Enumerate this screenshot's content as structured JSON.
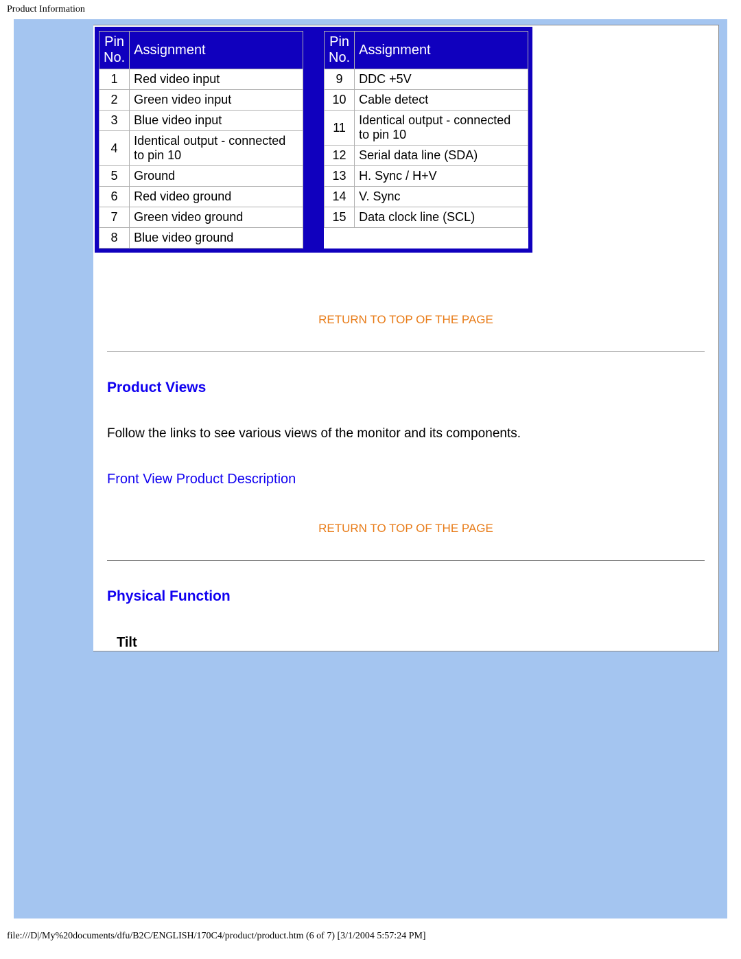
{
  "header": {
    "title": "Product Information"
  },
  "pin_table": {
    "headers": {
      "pin_no": "Pin No.",
      "assignment": "Assignment"
    },
    "left_rows": [
      {
        "no": "1",
        "assignment": "Red video input"
      },
      {
        "no": "2",
        "assignment": "Green video input"
      },
      {
        "no": "3",
        "assignment": "Blue video input"
      },
      {
        "no": "4",
        "assignment": "Identical output - connected to pin 10"
      },
      {
        "no": "5",
        "assignment": "Ground"
      },
      {
        "no": "6",
        "assignment": "Red video ground"
      },
      {
        "no": "7",
        "assignment": "Green video ground"
      },
      {
        "no": "8",
        "assignment": "Blue video ground"
      }
    ],
    "right_rows": [
      {
        "no": "9",
        "assignment": "DDC +5V"
      },
      {
        "no": "10",
        "assignment": "Cable detect"
      },
      {
        "no": "11",
        "assignment": "Identical output - connected to pin 10"
      },
      {
        "no": "12",
        "assignment": "Serial data line (SDA)"
      },
      {
        "no": "13",
        "assignment": "H. Sync / H+V"
      },
      {
        "no": "14",
        "assignment": "V. Sync"
      },
      {
        "no": "15",
        "assignment": "Data clock line (SCL)"
      }
    ]
  },
  "links": {
    "return_top": "RETURN TO TOP OF THE PAGE",
    "front_view": "Front View Product Description"
  },
  "sections": {
    "product_views": {
      "heading": "Product Views",
      "text": "Follow the links to see various views of the monitor and its components."
    },
    "physical_function": {
      "heading": "Physical Function",
      "sub": "Tilt"
    }
  },
  "footer": {
    "text": "file:///D|/My%20documents/dfu/B2C/ENGLISH/170C4/product/product.htm (6 of 7) [3/1/2004 5:57:24 PM]"
  },
  "colors": {
    "frame_blue": "#a4c5f0",
    "table_blue": "#1000be",
    "link_blue": "#1000f0",
    "link_orange": "#e87b17"
  }
}
